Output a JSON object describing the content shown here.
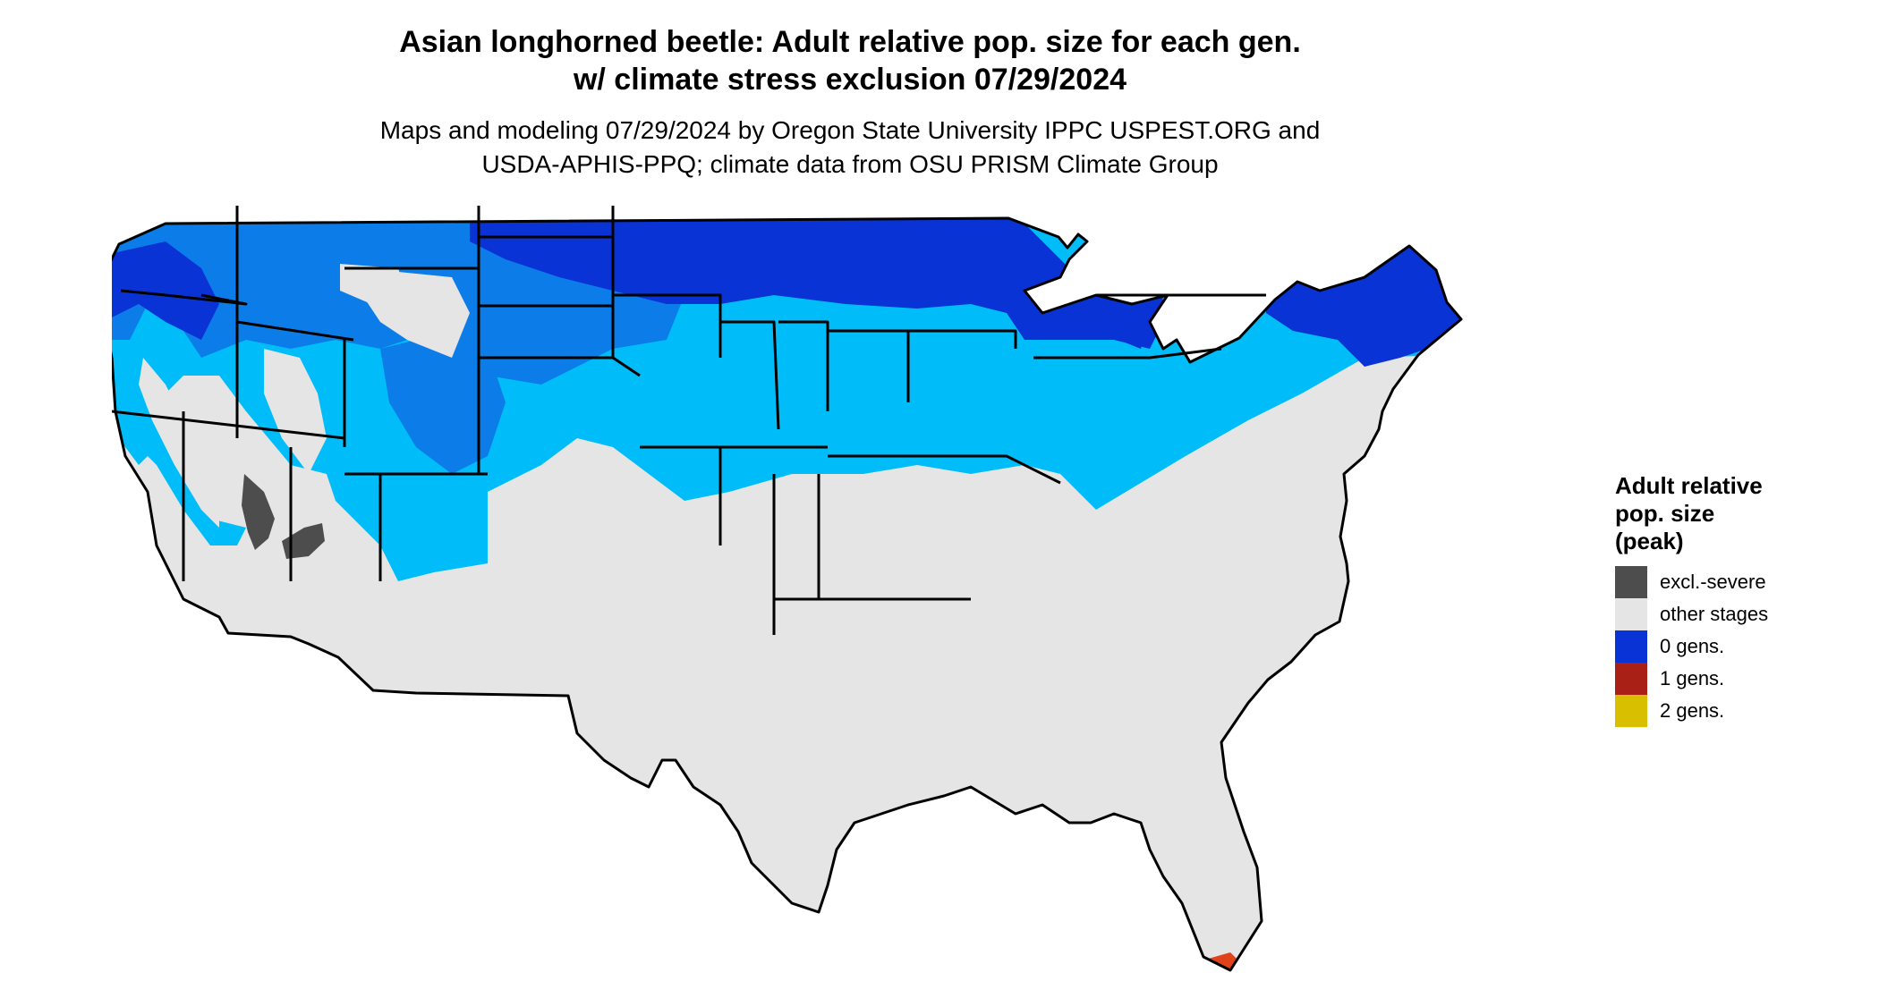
{
  "title": {
    "line1": "Asian longhorned beetle: Adult relative pop. size for each gen.",
    "line2": "w/ climate stress exclusion 07/29/2024"
  },
  "subtitle": {
    "line1": "Maps and modeling 07/29/2024 by Oregon State University IPPC USPEST.ORG and",
    "line2": "USDA-APHIS-PPQ; climate data from OSU PRISM Climate Group"
  },
  "legend": {
    "title_line1": "Adult relative",
    "title_line2": "pop. size",
    "title_line3": "(peak)",
    "items": [
      {
        "label": "excl.-severe",
        "color": "#4d4d4d"
      },
      {
        "label": "other stages",
        "color": "#e5e5e5"
      },
      {
        "label": "0 gens.",
        "color": "#0a33d6"
      },
      {
        "label": "1 gens.",
        "color": "#a82016"
      },
      {
        "label": "2 gens.",
        "color": "#d8c000"
      }
    ]
  },
  "map_colors": {
    "light_blue": "#00bdf9",
    "mid_blue": "#0c7de8",
    "dark_blue": "#0a33d6",
    "grey": "#e5e5e5",
    "excl": "#4d4d4d",
    "red": "#e0431c",
    "border": "#000000"
  }
}
